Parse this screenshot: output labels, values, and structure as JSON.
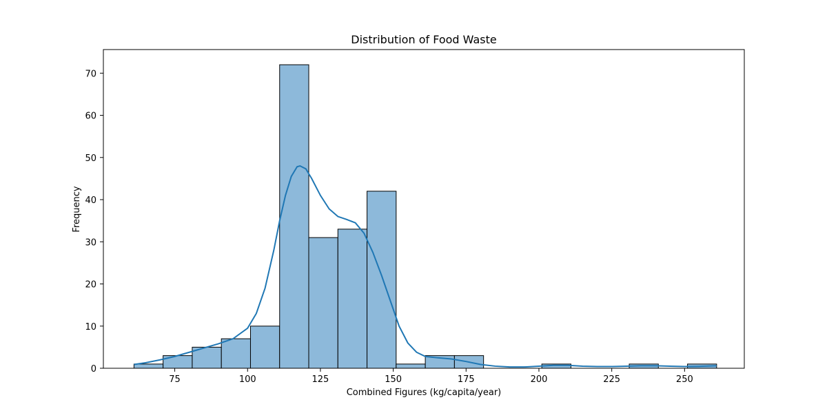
{
  "chart_data": {
    "type": "bar",
    "title": "Distribution of Food Waste",
    "xlabel": "Combined Figures (kg/capita/year)",
    "ylabel": "Frequency",
    "xlim": [
      50.5,
      270.5
    ],
    "ylim": [
      0,
      75.6
    ],
    "xticks": [
      75,
      100,
      125,
      150,
      175,
      200,
      225,
      250
    ],
    "yticks": [
      0,
      10,
      20,
      30,
      40,
      50,
      60,
      70
    ],
    "grid": false,
    "legend": "none",
    "bins": [
      {
        "x0": 61,
        "x1": 71,
        "count": 1
      },
      {
        "x0": 71,
        "x1": 81,
        "count": 3
      },
      {
        "x0": 81,
        "x1": 91,
        "count": 5
      },
      {
        "x0": 91,
        "x1": 101,
        "count": 7
      },
      {
        "x0": 101,
        "x1": 111,
        "count": 10
      },
      {
        "x0": 111,
        "x1": 121,
        "count": 72
      },
      {
        "x0": 121,
        "x1": 131,
        "count": 31
      },
      {
        "x0": 131,
        "x1": 141,
        "count": 33
      },
      {
        "x0": 141,
        "x1": 151,
        "count": 42
      },
      {
        "x0": 151,
        "x1": 161,
        "count": 1
      },
      {
        "x0": 161,
        "x1": 171,
        "count": 3
      },
      {
        "x0": 171,
        "x1": 181,
        "count": 3
      },
      {
        "x0": 181,
        "x1": 191,
        "count": 0
      },
      {
        "x0": 191,
        "x1": 201,
        "count": 0
      },
      {
        "x0": 201,
        "x1": 211,
        "count": 1
      },
      {
        "x0": 211,
        "x1": 221,
        "count": 0
      },
      {
        "x0": 221,
        "x1": 231,
        "count": 0
      },
      {
        "x0": 231,
        "x1": 241,
        "count": 1
      },
      {
        "x0": 241,
        "x1": 251,
        "count": 0
      },
      {
        "x0": 251,
        "x1": 261,
        "count": 1
      }
    ],
    "kde": {
      "x": [
        61,
        65,
        70,
        75,
        80,
        85,
        90,
        95,
        100,
        103,
        106,
        109,
        111,
        113,
        115,
        117,
        118,
        120,
        122,
        125,
        128,
        131,
        134,
        137,
        140,
        143,
        146,
        149,
        152,
        155,
        158,
        161,
        165,
        170,
        175,
        180,
        185,
        190,
        195,
        200,
        205,
        210,
        215,
        220,
        225,
        230,
        235,
        240,
        245,
        250,
        255,
        261
      ],
      "y": [
        0.9,
        1.3,
        2.0,
        2.8,
        3.8,
        4.8,
        5.8,
        7.0,
        9.5,
        13,
        19,
        28,
        35,
        41,
        45.5,
        47.8,
        48,
        47.3,
        45,
        41,
        37.8,
        36,
        35.3,
        34.5,
        32,
        27.5,
        22,
        16,
        10,
        6,
        3.8,
        2.8,
        2.5,
        2.2,
        1.6,
        0.9,
        0.5,
        0.3,
        0.3,
        0.5,
        0.7,
        0.7,
        0.5,
        0.4,
        0.4,
        0.5,
        0.6,
        0.6,
        0.5,
        0.4,
        0.45,
        0.6
      ]
    },
    "colors": {
      "bar_fill": "#8db9da",
      "bar_edge": "#000000",
      "kde_line": "#1f77b4"
    }
  }
}
